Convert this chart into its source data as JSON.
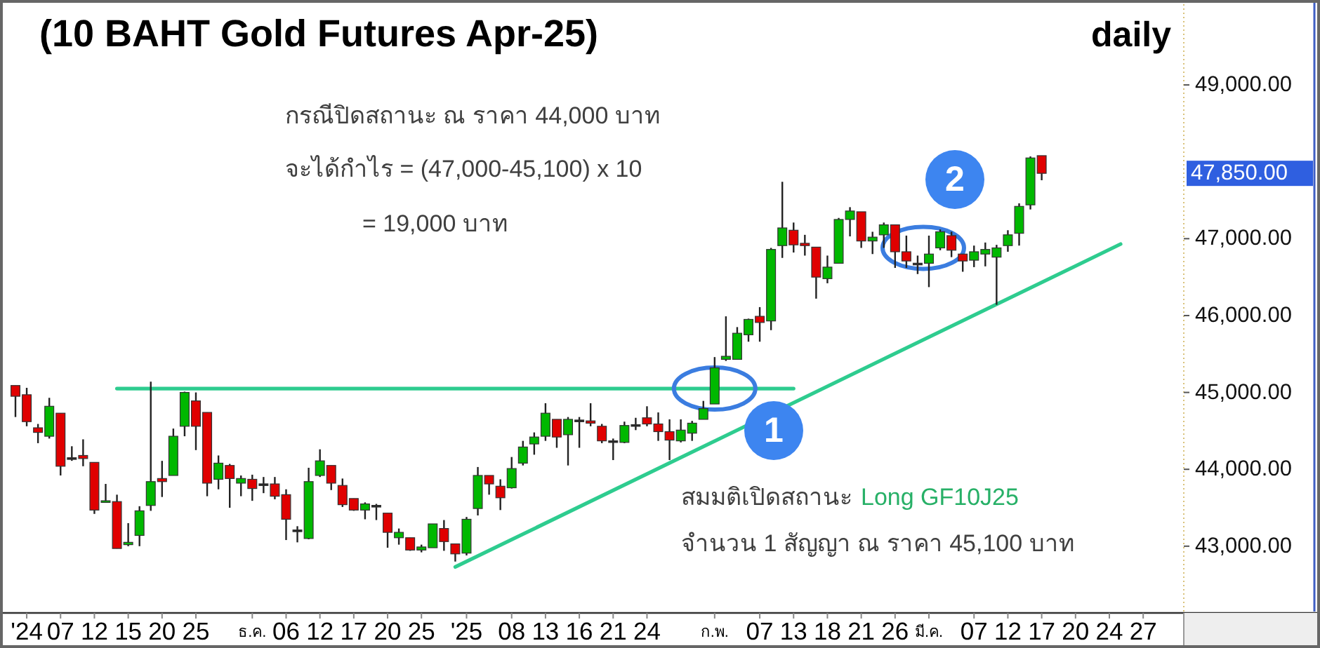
{
  "chart_data": {
    "type": "candlestick",
    "title": "(10 BAHT Gold Futures Apr-25)",
    "subtitle": "daily",
    "categories": [
      null,
      "'24",
      null,
      null,
      "07",
      null,
      null,
      "12",
      null,
      null,
      "15",
      null,
      null,
      "20",
      null,
      null,
      "25",
      null,
      null,
      null,
      null,
      "ธ.ค.",
      null,
      null,
      "06",
      null,
      null,
      "12",
      null,
      null,
      "17",
      null,
      null,
      "20",
      null,
      null,
      "25",
      null,
      null,
      null,
      "'25",
      null,
      null,
      null,
      "08",
      null,
      null,
      "13",
      null,
      null,
      "16",
      null,
      null,
      "21",
      null,
      null,
      "24",
      null,
      null,
      null,
      null,
      null,
      "ก.พ.",
      null,
      null,
      null,
      "07",
      null,
      null,
      "13",
      null,
      null,
      "18",
      null,
      null,
      "21",
      null,
      null,
      "26",
      null,
      null,
      "มี.ค.",
      null,
      null,
      null,
      "07",
      null,
      null,
      "12",
      null,
      null,
      "17",
      null,
      null,
      "20",
      null,
      null,
      "24",
      null,
      null,
      "27"
    ],
    "ohlc": [
      [
        45090,
        45090,
        44680,
        44950
      ],
      [
        44970,
        45060,
        44560,
        44620
      ],
      [
        44540,
        44590,
        44340,
        44480
      ],
      [
        44430,
        44930,
        44400,
        44820
      ],
      [
        44730,
        44730,
        43920,
        44040
      ],
      [
        44140,
        44300,
        44110,
        44140
      ],
      [
        44180,
        44390,
        44040,
        44140
      ],
      [
        44090,
        44090,
        43420,
        43470
      ],
      [
        43570,
        43810,
        43570,
        43580
      ],
      [
        43580,
        43670,
        42970,
        42970
      ],
      [
        43020,
        43300,
        43000,
        43050
      ],
      [
        43140,
        43520,
        43000,
        43460
      ],
      [
        43530,
        45140,
        43460,
        43840
      ],
      [
        43880,
        44110,
        43640,
        43840
      ],
      [
        43920,
        44530,
        43920,
        44430
      ],
      [
        44560,
        45010,
        44430,
        45000
      ],
      [
        44890,
        45000,
        44250,
        44560
      ],
      [
        44740,
        44740,
        43650,
        43820
      ],
      [
        43870,
        44180,
        43740,
        44080
      ],
      [
        44050,
        44070,
        43500,
        43880
      ],
      [
        43820,
        43920,
        43650,
        43880
      ],
      [
        43870,
        43930,
        43590,
        43750
      ],
      [
        43800,
        43900,
        43690,
        43800
      ],
      [
        43810,
        43900,
        43610,
        43650
      ],
      [
        43670,
        43740,
        43080,
        43350
      ],
      [
        43200,
        43260,
        43050,
        43200
      ],
      [
        43100,
        44020,
        43090,
        43840
      ],
      [
        43920,
        44260,
        43900,
        44110
      ],
      [
        44050,
        44050,
        43730,
        43820
      ],
      [
        43790,
        43880,
        43510,
        43540
      ],
      [
        43620,
        43620,
        43460,
        43470
      ],
      [
        43470,
        43570,
        43350,
        43550
      ],
      [
        43520,
        43550,
        43340,
        43520
      ],
      [
        43430,
        43430,
        42980,
        43180
      ],
      [
        43110,
        43230,
        43020,
        43180
      ],
      [
        43110,
        43110,
        42940,
        42950
      ],
      [
        42950,
        43020,
        42920,
        42990
      ],
      [
        42980,
        43290,
        42980,
        43290
      ],
      [
        43230,
        43340,
        42940,
        43060
      ],
      [
        43030,
        43030,
        42800,
        42900
      ],
      [
        42910,
        43380,
        42880,
        43350
      ],
      [
        43490,
        44030,
        43400,
        43920
      ],
      [
        43920,
        43920,
        43670,
        43810
      ],
      [
        43780,
        43870,
        43470,
        43630
      ],
      [
        43760,
        44160,
        43750,
        44010
      ],
      [
        44080,
        44370,
        44050,
        44290
      ],
      [
        44330,
        44480,
        44190,
        44420
      ],
      [
        44430,
        44860,
        44370,
        44730
      ],
      [
        44650,
        44650,
        44280,
        44420
      ],
      [
        44450,
        44680,
        44050,
        44650
      ],
      [
        44630,
        44680,
        44280,
        44630
      ],
      [
        44630,
        44860,
        44560,
        44600
      ],
      [
        44560,
        44590,
        44340,
        44370
      ],
      [
        44360,
        44400,
        44120,
        44360
      ],
      [
        44350,
        44620,
        44340,
        44570
      ],
      [
        44570,
        44670,
        44510,
        44570
      ],
      [
        44670,
        44820,
        44560,
        44590
      ],
      [
        44590,
        44740,
        44370,
        44490
      ],
      [
        44490,
        44650,
        44120,
        44380
      ],
      [
        44370,
        44650,
        44350,
        44510
      ],
      [
        44470,
        44630,
        44370,
        44600
      ],
      [
        44650,
        44890,
        44650,
        44790
      ],
      [
        44850,
        45460,
        44850,
        45320
      ],
      [
        45430,
        45990,
        45410,
        45470
      ],
      [
        45430,
        45850,
        45430,
        45770
      ],
      [
        45750,
        45960,
        45660,
        45950
      ],
      [
        45990,
        46110,
        45660,
        45910
      ],
      [
        45930,
        46880,
        45810,
        46860
      ],
      [
        46910,
        47740,
        46750,
        47140
      ],
      [
        47110,
        47210,
        46820,
        46920
      ],
      [
        46940,
        47050,
        46780,
        46910
      ],
      [
        46890,
        46890,
        46220,
        46500
      ],
      [
        46480,
        46780,
        46420,
        46630
      ],
      [
        46680,
        47270,
        46680,
        47250
      ],
      [
        47250,
        47410,
        47030,
        47360
      ],
      [
        47350,
        47350,
        46880,
        46970
      ],
      [
        46970,
        47090,
        46800,
        47020
      ],
      [
        47050,
        47210,
        46880,
        47180
      ],
      [
        47180,
        47180,
        46620,
        46830
      ],
      [
        46830,
        47040,
        46620,
        46710
      ],
      [
        46670,
        46780,
        46540,
        46670
      ],
      [
        46680,
        47040,
        46370,
        46800
      ],
      [
        46880,
        47120,
        46850,
        47090
      ],
      [
        47040,
        47090,
        46760,
        46850
      ],
      [
        46800,
        46800,
        46570,
        46710
      ],
      [
        46720,
        46910,
        46630,
        46830
      ],
      [
        46800,
        46950,
        46640,
        46860
      ],
      [
        46760,
        46920,
        46140,
        46880
      ],
      [
        46910,
        47110,
        46830,
        47050
      ],
      [
        47070,
        47460,
        46910,
        47420
      ],
      [
        47440,
        48070,
        47380,
        48050
      ],
      [
        48080,
        48080,
        47760,
        47850
      ],
      null,
      null,
      null,
      null,
      null,
      null,
      null,
      null,
      null
    ],
    "series": [
      {
        "type": "line",
        "color": "#2ecc8f",
        "values": [
          null,
          null,
          null,
          null,
          null,
          null,
          null,
          null,
          null,
          45050,
          null,
          null,
          null,
          null,
          null,
          null,
          null,
          null,
          null,
          null,
          null,
          null,
          null,
          null,
          null,
          null,
          null,
          null,
          null,
          null,
          null,
          null,
          null,
          null,
          null,
          null,
          null,
          null,
          null,
          null,
          null,
          null,
          null,
          null,
          null,
          null,
          null,
          null,
          null,
          null,
          null,
          null,
          null,
          null,
          null,
          null,
          null,
          null,
          null,
          null,
          null,
          null,
          null,
          null,
          null,
          null,
          null,
          null,
          null,
          45050,
          null,
          null,
          null,
          null,
          null,
          null,
          null,
          null,
          null,
          null,
          null,
          null,
          null,
          null,
          null,
          null,
          null,
          null,
          null,
          null,
          null,
          null,
          null,
          null,
          null,
          null,
          null,
          null,
          null,
          null,
          null
        ]
      },
      {
        "type": "line",
        "color": "#2ecc8f",
        "values": [
          null,
          null,
          null,
          null,
          null,
          null,
          null,
          null,
          null,
          null,
          null,
          null,
          null,
          null,
          null,
          null,
          null,
          null,
          null,
          null,
          null,
          null,
          null,
          null,
          null,
          null,
          null,
          null,
          null,
          null,
          null,
          null,
          null,
          null,
          null,
          null,
          null,
          null,
          null,
          42730,
          null,
          null,
          null,
          null,
          null,
          null,
          null,
          null,
          null,
          null,
          null,
          null,
          null,
          null,
          null,
          null,
          null,
          null,
          null,
          null,
          null,
          null,
          null,
          null,
          null,
          null,
          null,
          null,
          null,
          null,
          null,
          null,
          null,
          null,
          null,
          null,
          null,
          null,
          null,
          null,
          null,
          null,
          null,
          null,
          null,
          null,
          null,
          null,
          null,
          null,
          null,
          null,
          null,
          null,
          null,
          null,
          null,
          null,
          46930,
          null,
          null
        ]
      }
    ],
    "ylim": [
      42150,
      50050
    ],
    "yticks": [
      {
        "value": 43000,
        "label": "43,000.00"
      },
      {
        "value": 44000,
        "label": "44,000.00"
      },
      {
        "value": 45000,
        "label": "45,000.00"
      },
      {
        "value": 46000,
        "label": "46,000.00"
      },
      {
        "value": 47000,
        "label": "47,000.00"
      },
      {
        "value": 49000,
        "label": "49,000.00"
      }
    ],
    "tick_labels": "xy",
    "annotations": [
      "กรณีปิดสถานะ ณ ราคา 44,000 บาท",
      "จะได้กำไร = (47,000-45,100) x 10",
      "= 19,000 บาท",
      "สมมติเปิดสถานะ",
      "Long GF10J25",
      "จำนวน 1 สัญญา ณ ราคา 45,100 บาท",
      "1",
      "2",
      "47,850.00"
    ]
  }
}
